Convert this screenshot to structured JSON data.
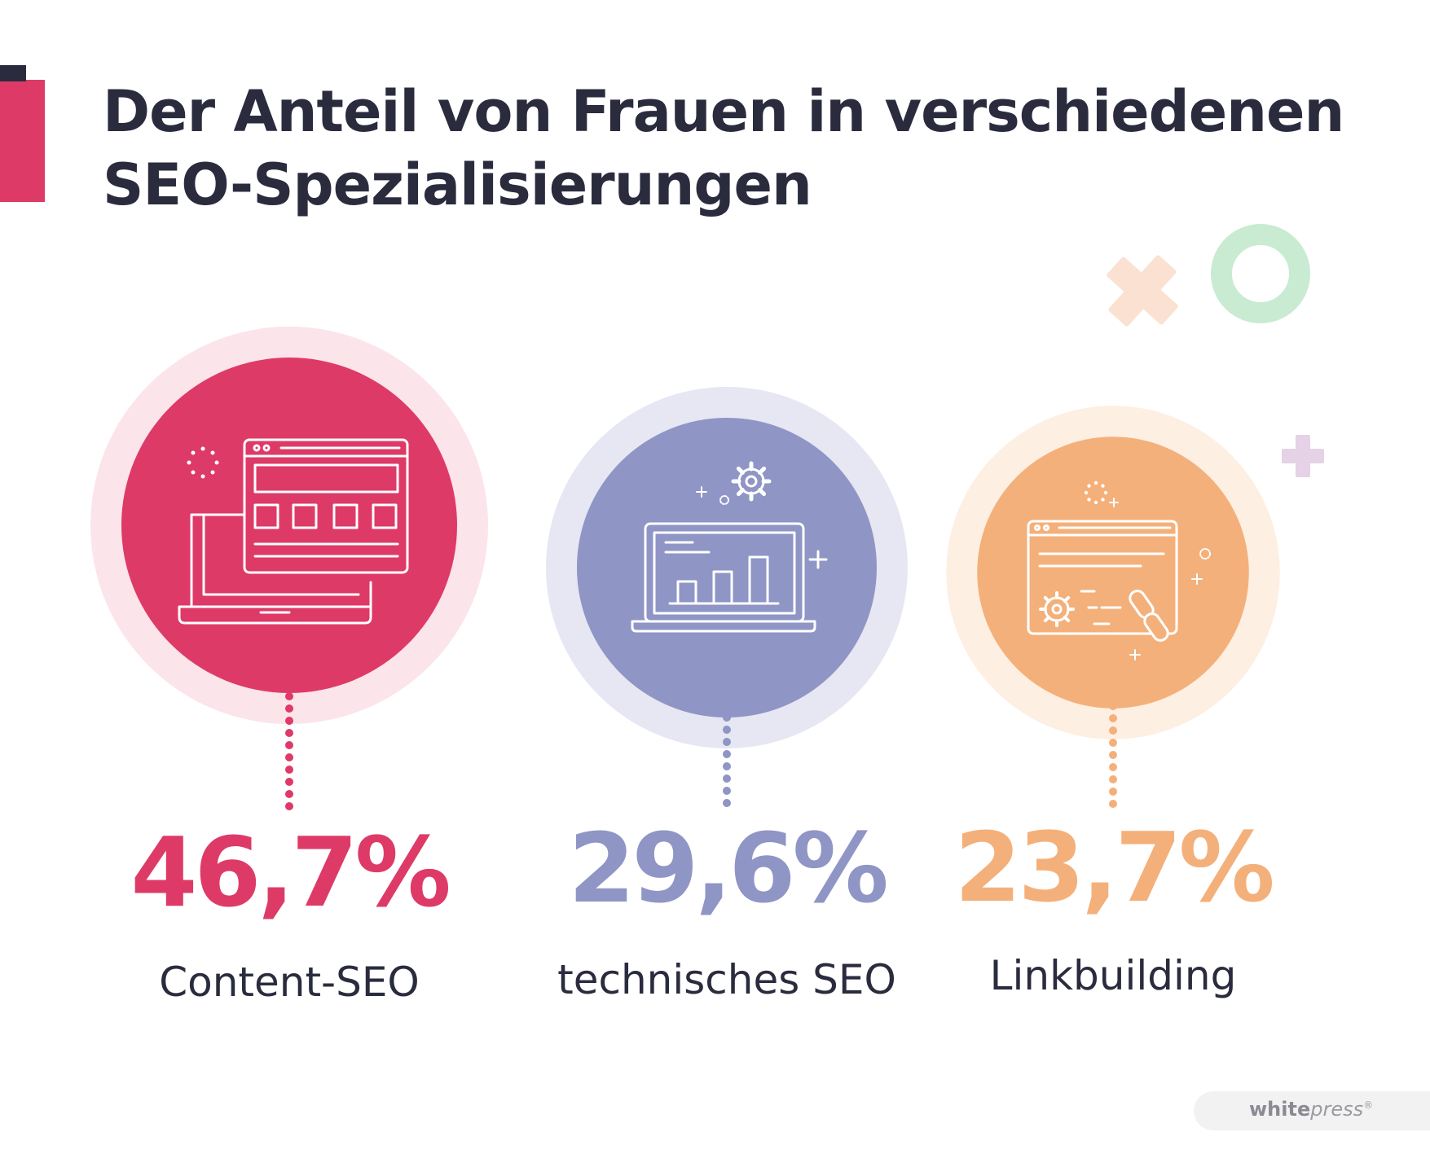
{
  "header": {
    "title_line1": "Der Anteil von Frauen in verschiedenen",
    "title_line2": "SEO-Spezialisierungen"
  },
  "chart_data": {
    "type": "bubble",
    "title": "Der Anteil von Frauen in verschiedenen SEO-Spezialisierungen",
    "unit": "%",
    "series": [
      {
        "name": "Content-SEO",
        "value": 46.7,
        "label": "46,7%",
        "color": "#de3a67",
        "halo": "#fbe4ea",
        "icon": "website-layout-on-laptop-icon"
      },
      {
        "name": "technisches SEO",
        "value": 29.6,
        "label": "29,6%",
        "color": "#8f95c5",
        "halo": "#e6e7f2",
        "icon": "laptop-bar-chart-gear-icon"
      },
      {
        "name": "Linkbuilding",
        "value": 23.7,
        "label": "23,7%",
        "color": "#f4b07a",
        "halo": "#fdefe2",
        "icon": "browser-gear-link-icon"
      }
    ]
  },
  "decorations": {
    "cross_peach": "#fbe1d1",
    "ring_green": "#c8ebd2",
    "cross_lilac": "#e5d2e6"
  },
  "footer": {
    "brand_bold": "white",
    "brand_italic": "press",
    "brand_mark": "®"
  }
}
